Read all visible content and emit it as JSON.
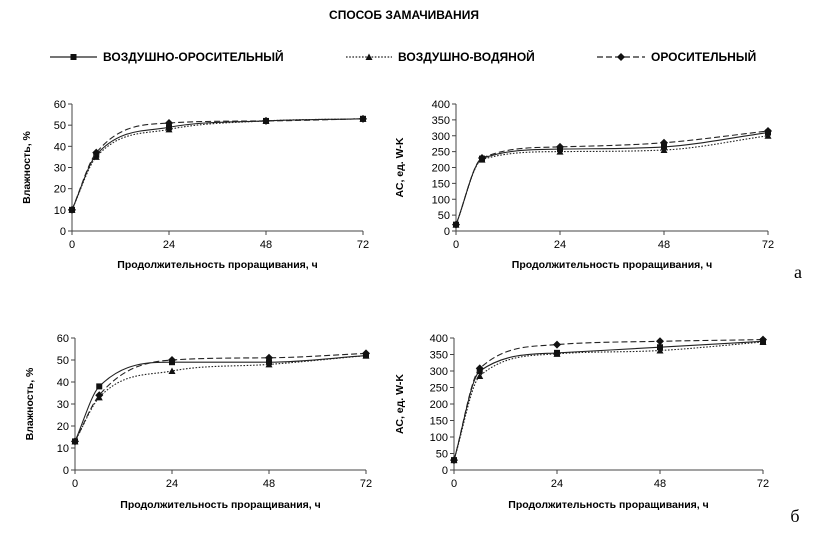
{
  "figure": {
    "title": "СПОСОБ ЗАМАЧИВАНИЯ",
    "legend": [
      {
        "name": "ВОЗДУШНО-ОРОСИТЕЛЬНЫЙ",
        "dash": "solid",
        "marker": "square"
      },
      {
        "name": "ВОЗДУШНО-ВОДЯНОЙ",
        "dash": "dotted",
        "marker": "triangle"
      },
      {
        "name": "ОРОСИТЕЛЬНЫЙ",
        "dash": "dashed",
        "marker": "diamond"
      }
    ],
    "panel_labels": [
      "а",
      "б"
    ]
  },
  "chart_data": [
    {
      "type": "line",
      "panel": "а",
      "ylabel": "Влажность, %",
      "xlabel": "Продолжительность проращивания, ч",
      "xlim": [
        0,
        72
      ],
      "ylim": [
        0,
        60
      ],
      "xticks": [
        0,
        24,
        48,
        72
      ],
      "yticks": [
        0,
        10,
        20,
        30,
        40,
        50,
        60
      ],
      "x": [
        0,
        6,
        24,
        48,
        72
      ],
      "series": [
        {
          "name": "ВОЗДУШНО-ОРОСИТЕЛЬНЫЙ",
          "values": [
            10,
            36,
            49,
            52,
            53
          ]
        },
        {
          "name": "ВОЗДУШНО-ВОДЯНОЙ",
          "values": [
            10,
            35,
            48,
            52,
            53
          ]
        },
        {
          "name": "ОРОСИТЕЛЬНЫЙ",
          "values": [
            10,
            37,
            51,
            52,
            53
          ]
        }
      ]
    },
    {
      "type": "line",
      "panel": "а",
      "ylabel": "АС, ед. W-K",
      "xlabel": "Продолжительность проращивания, ч",
      "xlim": [
        0,
        72
      ],
      "ylim": [
        0,
        400
      ],
      "xticks": [
        0,
        24,
        48,
        72
      ],
      "yticks": [
        0,
        50,
        100,
        150,
        200,
        250,
        300,
        350,
        400
      ],
      "x": [
        0,
        6,
        24,
        48,
        72
      ],
      "series": [
        {
          "name": "ВОЗДУШНО-ОРОСИТЕЛЬНЫЙ",
          "values": [
            20,
            228,
            258,
            265,
            310
          ]
        },
        {
          "name": "ВОЗДУШНО-ВОДЯНОЙ",
          "values": [
            20,
            225,
            250,
            255,
            300
          ]
        },
        {
          "name": "ОРОСИТЕЛЬНЫЙ",
          "values": [
            20,
            230,
            265,
            278,
            315
          ]
        }
      ]
    },
    {
      "type": "line",
      "panel": "б",
      "ylabel": "Влажность, %",
      "xlabel": "Продолжительность проращивания, ч",
      "xlim": [
        0,
        72
      ],
      "ylim": [
        0,
        60
      ],
      "xticks": [
        0,
        24,
        48,
        72
      ],
      "yticks": [
        0,
        10,
        20,
        30,
        40,
        50,
        60
      ],
      "x": [
        0,
        6,
        24,
        48,
        72
      ],
      "series": [
        {
          "name": "ВОЗДУШНО-ОРОСИТЕЛЬНЫЙ",
          "values": [
            13,
            38,
            49,
            49,
            52
          ]
        },
        {
          "name": "ВОЗДУШНО-ВОДЯНОЙ",
          "values": [
            13,
            33,
            45,
            48,
            52
          ]
        },
        {
          "name": "ОРОСИТЕЛЬНЫЙ",
          "values": [
            13,
            34,
            50,
            51,
            53
          ]
        }
      ]
    },
    {
      "type": "line",
      "panel": "б",
      "ylabel": "АС, ед. W-K",
      "xlabel": "Продолжительность проращивания, ч",
      "xlim": [
        0,
        72
      ],
      "ylim": [
        0,
        400
      ],
      "xticks": [
        0,
        24,
        48,
        72
      ],
      "yticks": [
        0,
        50,
        100,
        150,
        200,
        250,
        300,
        350,
        400
      ],
      "x": [
        0,
        6,
        24,
        48,
        72
      ],
      "series": [
        {
          "name": "ВОЗДУШНО-ОРОСИТЕЛЬНЫЙ",
          "values": [
            30,
            300,
            355,
            372,
            390
          ]
        },
        {
          "name": "ВОЗДУШНО-ВОДЯНОЙ",
          "values": [
            30,
            285,
            352,
            362,
            388
          ]
        },
        {
          "name": "ОРОСИТЕЛЬНЫЙ",
          "values": [
            30,
            308,
            380,
            390,
            395
          ]
        }
      ]
    }
  ]
}
